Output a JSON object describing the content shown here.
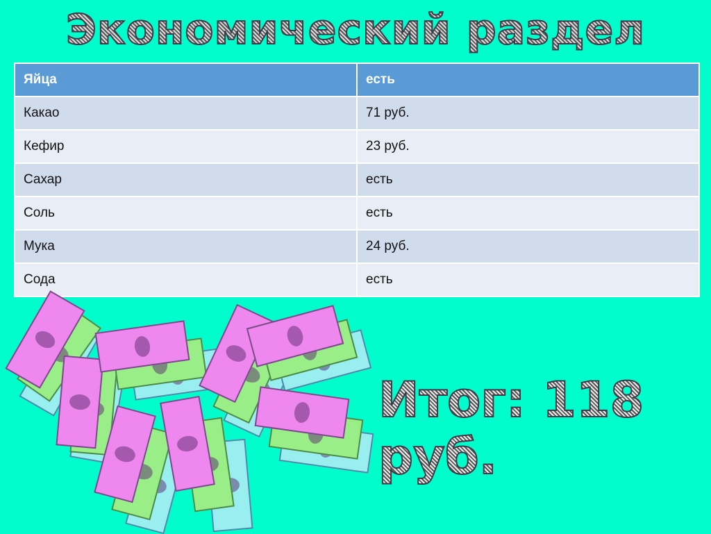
{
  "title": "Экономический раздел",
  "table": {
    "rows": [
      {
        "item": "Яйца",
        "value": "есть"
      },
      {
        "item": "Какао",
        "value": "71 руб."
      },
      {
        "item": "Кефир",
        "value": "23 руб."
      },
      {
        "item": "Сахар",
        "value": "есть"
      },
      {
        "item": "Соль",
        "value": "есть"
      },
      {
        "item": "Мука",
        "value": "24 руб."
      },
      {
        "item": "Сода",
        "value": "есть"
      }
    ]
  },
  "total": "Итог: 118 руб.",
  "colors": {
    "background": "#00FDCB",
    "header": "#5B9BD5",
    "row_odd": "#D0DBEC",
    "row_even": "#E9EEF6"
  },
  "decoration": "money-bills-image"
}
